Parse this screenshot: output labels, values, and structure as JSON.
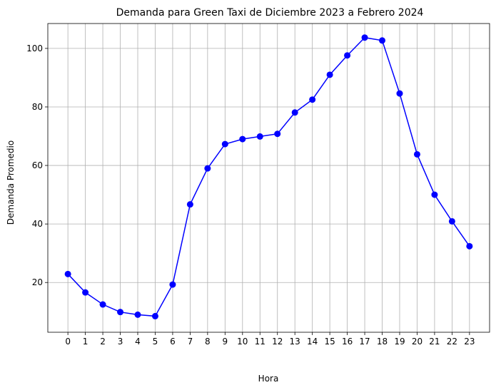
{
  "chart_data": {
    "type": "line",
    "title": "Demanda para Green Taxi de Diciembre 2023 a Febrero 2024",
    "xlabel": "Hora",
    "ylabel": "Demanda Promedio",
    "x": [
      0,
      1,
      2,
      3,
      4,
      5,
      6,
      7,
      8,
      9,
      10,
      11,
      12,
      13,
      14,
      15,
      16,
      17,
      18,
      19,
      20,
      21,
      22,
      23
    ],
    "x_tick_labels": [
      "0",
      "1",
      "2",
      "3",
      "4",
      "5",
      "6",
      "7",
      "8",
      "9",
      "10",
      "11",
      "12",
      "13",
      "14",
      "15",
      "16",
      "17",
      "18",
      "19",
      "20",
      "21",
      "22",
      "23"
    ],
    "y_ticks": [
      20,
      40,
      60,
      80,
      100
    ],
    "y_tick_labels": [
      "20",
      "40",
      "60",
      "80",
      "100"
    ],
    "ylim": [
      3.0,
      108.5
    ],
    "xlim": [
      -1.15,
      24.15
    ],
    "grid": true,
    "series": [
      {
        "color": "#0000ff",
        "marker": "circle",
        "values": [
          22.9,
          16.6,
          12.5,
          9.9,
          9.0,
          8.5,
          19.3,
          46.7,
          59.0,
          67.3,
          69.0,
          69.9,
          70.8,
          78.1,
          82.5,
          91.0,
          97.6,
          103.7,
          102.7,
          84.6,
          63.8,
          50.0,
          40.9,
          32.4
        ]
      }
    ]
  }
}
